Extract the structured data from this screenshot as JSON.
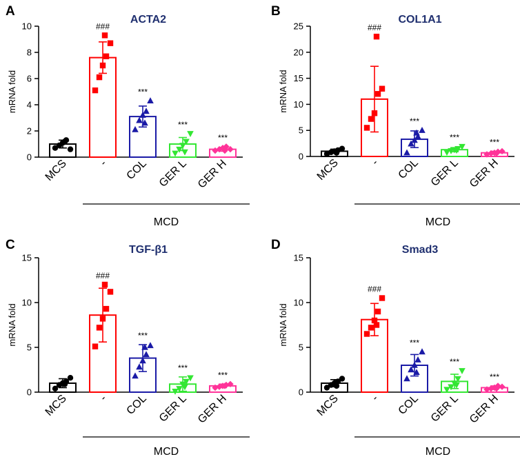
{
  "figure": {
    "categories": [
      "MCS",
      "-",
      "COL",
      "GER L",
      "GER H"
    ],
    "group_label": "MCD",
    "ylabel": "mRNA fold",
    "colors": [
      "#000000",
      "#ff0000",
      "#1a1aa6",
      "#33e633",
      "#ff3399"
    ],
    "markers": [
      "circle",
      "square",
      "triangle-up",
      "triangle-down",
      "diamond"
    ]
  },
  "chart_data": [
    {
      "type": "bar",
      "panel": "A",
      "title": "ACTA2",
      "ylabel": "mRNA fold",
      "ylim": [
        0,
        10
      ],
      "yticks": [
        0,
        2,
        4,
        6,
        8,
        10
      ],
      "categories": [
        "MCS",
        "-",
        "COL",
        "GER L",
        "GER H"
      ],
      "values": [
        1.0,
        7.6,
        3.1,
        1.0,
        0.6
      ],
      "errors": [
        0.3,
        1.2,
        0.8,
        0.5,
        0.15
      ],
      "significance": [
        "",
        "###",
        "***",
        "***",
        "***"
      ],
      "points": [
        [
          0.7,
          0.9,
          1.1,
          1.3,
          0.6,
          1.2
        ],
        [
          5.1,
          6.1,
          7.0,
          7.7,
          8.7,
          9.3
        ],
        [
          2.1,
          2.8,
          3.2,
          3.5,
          4.3,
          2.6
        ],
        [
          0.3,
          0.6,
          0.9,
          1.2,
          1.8,
          0.4
        ],
        [
          0.5,
          0.6,
          0.7,
          0.8,
          0.6,
          0.5
        ]
      ]
    },
    {
      "type": "bar",
      "panel": "B",
      "title": "COL1A1",
      "ylabel": "mRNA fold",
      "ylim": [
        0,
        25
      ],
      "yticks": [
        0,
        5,
        10,
        15,
        20,
        25
      ],
      "categories": [
        "MCS",
        "-",
        "COL",
        "GER L",
        "GER H"
      ],
      "values": [
        1.0,
        11.0,
        3.3,
        1.3,
        0.7
      ],
      "errors": [
        0.4,
        6.3,
        1.6,
        0.4,
        0.3
      ],
      "significance": [
        "",
        "###",
        "***",
        "***",
        "***"
      ],
      "points": [
        [
          0.5,
          0.8,
          1.0,
          1.2,
          1.5,
          0.7
        ],
        [
          5.5,
          7.2,
          8.3,
          12.0,
          13.0,
          23.0
        ],
        [
          0.7,
          2.4,
          3.1,
          3.8,
          5.0,
          4.5
        ],
        [
          0.8,
          1.1,
          1.3,
          1.5,
          1.9,
          1.2
        ],
        [
          0.4,
          0.6,
          0.7,
          0.9,
          1.0,
          0.6
        ]
      ]
    },
    {
      "type": "bar",
      "panel": "C",
      "title": "TGF-β1",
      "ylabel": "mRNA fold",
      "ylim": [
        0,
        15
      ],
      "yticks": [
        0,
        5,
        10,
        15
      ],
      "categories": [
        "MCS",
        "-",
        "COL",
        "GER L",
        "GER H"
      ],
      "values": [
        1.0,
        8.6,
        3.8,
        0.9,
        0.7
      ],
      "errors": [
        0.5,
        3.0,
        1.5,
        0.8,
        0.2
      ],
      "significance": [
        "",
        "###",
        "***",
        "***",
        "***"
      ],
      "points": [
        [
          0.4,
          0.8,
          1.0,
          1.2,
          1.6,
          0.9
        ],
        [
          5.1,
          7.2,
          8.2,
          9.3,
          11.2,
          12.0
        ],
        [
          1.8,
          2.8,
          3.5,
          4.2,
          5.2,
          5.0
        ],
        [
          0.1,
          0.4,
          0.9,
          1.2,
          1.6,
          0.6
        ],
        [
          0.5,
          0.6,
          0.7,
          0.8,
          0.9,
          0.7
        ]
      ]
    },
    {
      "type": "bar",
      "panel": "D",
      "title": "Smad3",
      "ylabel": "mRNA fold",
      "ylim": [
        0,
        15
      ],
      "yticks": [
        0,
        5,
        10,
        15
      ],
      "categories": [
        "MCS",
        "-",
        "COL",
        "GER L",
        "GER H"
      ],
      "values": [
        1.0,
        8.1,
        3.0,
        1.2,
        0.5
      ],
      "errors": [
        0.4,
        1.8,
        1.2,
        0.8,
        0.2
      ],
      "significance": [
        "",
        "###",
        "***",
        "***",
        "***"
      ],
      "points": [
        [
          0.5,
          0.8,
          1.0,
          1.2,
          1.5,
          0.7
        ],
        [
          6.5,
          7.2,
          8.0,
          9.0,
          10.5,
          7.5
        ],
        [
          1.5,
          2.5,
          3.0,
          3.6,
          4.5,
          2.2
        ],
        [
          0.3,
          0.6,
          1.0,
          1.5,
          2.4,
          0.8
        ],
        [
          0.3,
          0.4,
          0.5,
          0.7,
          0.6,
          0.4
        ]
      ]
    }
  ]
}
